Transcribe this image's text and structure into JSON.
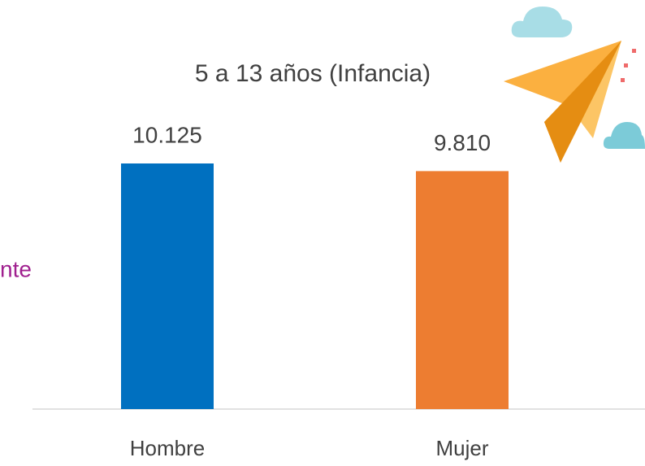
{
  "chart_data": {
    "type": "bar",
    "title": "5 a 13 años (Infancia)",
    "annotation": "nte",
    "categories": [
      "Hombre",
      "Mujer"
    ],
    "values": [
      10125,
      9810
    ],
    "value_labels": [
      "10.125",
      "9.810"
    ],
    "colors": [
      "#0070c0",
      "#ed7d31"
    ]
  }
}
